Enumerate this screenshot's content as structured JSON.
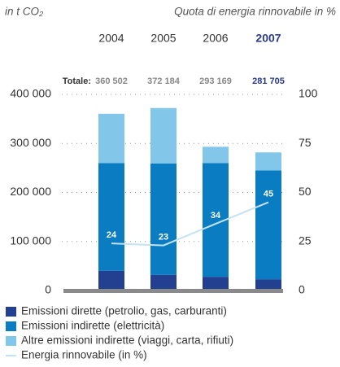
{
  "chart_data": {
    "type": "stacked-bar-line",
    "unit_label": "in t CO₂",
    "y2_label": "Quota di energia rinnovabile in %",
    "categories": [
      "2004",
      "2005",
      "2006",
      "2007"
    ],
    "highlight_index": 3,
    "totals": {
      "label": "Totale:",
      "values": [
        360502,
        372184,
        293169,
        281705
      ],
      "value_labels": [
        "360 502",
        "372 184",
        "293 169",
        "281 705"
      ]
    },
    "series": [
      {
        "name": "Emissioni dirette (petrolio, gas, carburanti)",
        "color": "#233f8f",
        "values": [
          40000,
          32000,
          28000,
          23000
        ]
      },
      {
        "name": "Emissioni indirette (elettricità)",
        "color": "#0a7cc1",
        "values": [
          220000,
          227000,
          232000,
          222000
        ]
      },
      {
        "name": "Altre emissioni indirette (viaggi, carta, rifiuti)",
        "color": "#82c6ea",
        "values": [
          100502,
          113184,
          33169,
          36705
        ]
      },
      {
        "name": "Energia rinnovabile (in %)",
        "color": "#c4e2f3",
        "axis": "y2",
        "type": "line",
        "values": [
          24,
          23,
          34,
          45
        ]
      }
    ],
    "ylim": [
      0,
      400000
    ],
    "yticks": [
      0,
      {
        "value": 100000,
        "label": "100 000"
      },
      {
        "value": 200000,
        "label": "200 000"
      },
      {
        "value": 300000,
        "label": "300 000"
      },
      {
        "value": 400000,
        "label": "400 000"
      }
    ],
    "y2lim": [
      0,
      100
    ],
    "y2ticks": [
      0,
      25,
      50,
      75,
      100
    ],
    "grid": true
  }
}
